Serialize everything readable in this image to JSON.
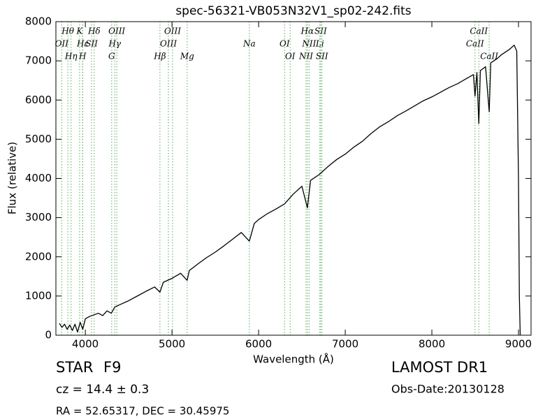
{
  "chart_data": {
    "type": "line",
    "title": "spec-56321-VB053N32V1_sp02-242.fits",
    "x_label": "Wavelength (Å)",
    "y_label": "Flux (relative)",
    "xlim": [
      3660,
      9145
    ],
    "ylim": [
      0,
      8000
    ],
    "xticks": [
      4000,
      5000,
      6000,
      7000,
      8000,
      9000
    ],
    "yticks": [
      0,
      1000,
      2000,
      3000,
      4000,
      5000,
      6000,
      7000,
      8000
    ],
    "grid": false,
    "feature_color": "#55aa55",
    "x": [
      3700,
      3730,
      3760,
      3790,
      3820,
      3850,
      3880,
      3910,
      3940,
      3970,
      4000,
      4050,
      4100,
      4150,
      4200,
      4250,
      4300,
      4340,
      4400,
      4500,
      4600,
      4700,
      4800,
      4861,
      4900,
      5000,
      5100,
      5175,
      5200,
      5300,
      5400,
      5500,
      5600,
      5700,
      5800,
      5893,
      5950,
      6000,
      6100,
      6200,
      6300,
      6400,
      6500,
      6563,
      6600,
      6700,
      6800,
      6900,
      7000,
      7100,
      7200,
      7300,
      7400,
      7500,
      7600,
      7700,
      7800,
      7900,
      8000,
      8100,
      8200,
      8300,
      8400,
      8480,
      8498,
      8520,
      8542,
      8560,
      8620,
      8662,
      8680,
      8750,
      8800,
      8900,
      8950,
      8980,
      9000,
      9010,
      9020
    ],
    "series": [
      {
        "name": "flux",
        "color": "#000000",
        "values": [
          300,
          200,
          280,
          150,
          260,
          120,
          280,
          80,
          330,
          150,
          420,
          480,
          520,
          560,
          500,
          620,
          560,
          720,
          780,
          880,
          1000,
          1120,
          1230,
          1100,
          1350,
          1450,
          1580,
          1400,
          1650,
          1820,
          1980,
          2120,
          2280,
          2450,
          2620,
          2400,
          2850,
          2950,
          3100,
          3220,
          3350,
          3600,
          3800,
          3250,
          3950,
          4100,
          4300,
          4480,
          4620,
          4800,
          4950,
          5150,
          5320,
          5450,
          5600,
          5720,
          5850,
          5980,
          6080,
          6200,
          6320,
          6420,
          6550,
          6650,
          6100,
          6700,
          5400,
          6750,
          6850,
          5700,
          6950,
          7050,
          7150,
          7300,
          7400,
          7250,
          4000,
          1000,
          0
        ]
      }
    ],
    "features": [
      {
        "label": "OII",
        "x": 3727
      },
      {
        "label": "Hθ",
        "x": 3798
      },
      {
        "label": "Hη",
        "x": 3835
      },
      {
        "label": "K",
        "x": 3934
      },
      {
        "label": "H",
        "x": 3968
      },
      {
        "label": "Hε",
        "x": 3970
      },
      {
        "label": "SII",
        "x": 4072
      },
      {
        "label": "Hδ",
        "x": 4102
      },
      {
        "label": "G",
        "x": 4304
      },
      {
        "label": "Hγ",
        "x": 4340
      },
      {
        "label": "OIII",
        "x": 4363
      },
      {
        "label": "Hβ",
        "x": 4861
      },
      {
        "label": "OIII",
        "x": 4959
      },
      {
        "label": "OIII",
        "x": 5007
      },
      {
        "label": "Mg",
        "x": 5175
      },
      {
        "label": "Na",
        "x": 5893
      },
      {
        "label": "OI",
        "x": 6300
      },
      {
        "label": "OI",
        "x": 6364
      },
      {
        "label": "NII",
        "x": 6548
      },
      {
        "label": "Hα",
        "x": 6563
      },
      {
        "label": "NII",
        "x": 6583
      },
      {
        "label": "Li",
        "x": 6707
      },
      {
        "label": "SII",
        "x": 6716
      },
      {
        "label": "SII",
        "x": 6731
      },
      {
        "label": "CaII",
        "x": 8498
      },
      {
        "label": "CaII",
        "x": 8542
      },
      {
        "label": "CaII",
        "x": 8662
      }
    ]
  },
  "footer": {
    "object_class": "STAR",
    "subclass": "F9",
    "redshift": "cz = 14.4 ± 0.3",
    "coordinates": "RA = 52.65317, DEC = 30.45975",
    "survey": "LAMOST DR1",
    "obs_date": "Obs-Date:20130128"
  }
}
